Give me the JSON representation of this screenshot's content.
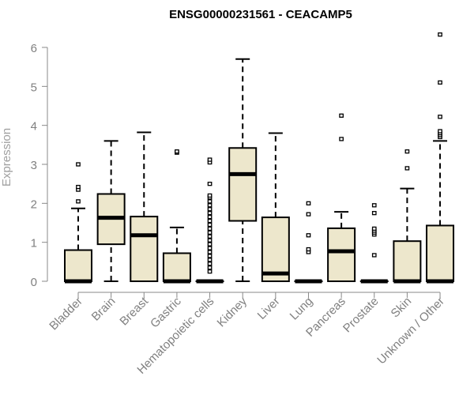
{
  "chart_data": {
    "type": "boxplot",
    "title": "ENSG00000231561 - CEACAMP5",
    "xlabel": "",
    "ylabel": "Expression",
    "ylim": [
      0,
      6
    ],
    "yticks": [
      0,
      1,
      2,
      3,
      4,
      5,
      6
    ],
    "grid": false,
    "colors": {
      "box_fill": "#ede7cc",
      "stroke": "#000000",
      "axis_text": "#808080"
    },
    "categories": [
      "Bladder",
      "Brain",
      "Breast",
      "Gastric",
      "Hematopoietic cells",
      "Kidney",
      "Liver",
      "Lung",
      "Pancreas",
      "Prostate",
      "Skin",
      "Unknown / Other"
    ],
    "boxes": [
      {
        "min": 0,
        "q1": 0,
        "median": 0,
        "q3": 0.8,
        "max": 1.87,
        "outliers": [
          2.05,
          2.35,
          2.42,
          3.0
        ]
      },
      {
        "min": 0,
        "q1": 0.95,
        "median": 1.63,
        "q3": 2.24,
        "max": 3.6,
        "outliers": []
      },
      {
        "min": 0,
        "q1": 0,
        "median": 1.18,
        "q3": 1.66,
        "max": 3.82,
        "outliers": []
      },
      {
        "min": 0,
        "q1": 0,
        "median": 0,
        "q3": 0.72,
        "max": 1.38,
        "outliers": [
          3.3,
          3.33
        ]
      },
      {
        "min": 0,
        "q1": 0,
        "median": 0,
        "q3": 0,
        "max": 0,
        "outliers": [
          0.25,
          0.35,
          0.45,
          0.55,
          0.65,
          0.75,
          0.85,
          0.95,
          1.05,
          1.15,
          1.25,
          1.35,
          1.45,
          1.55,
          1.65,
          1.75,
          1.85,
          1.95,
          2.05,
          2.15,
          2.2,
          2.5,
          3.05,
          3.12
        ]
      },
      {
        "min": 0,
        "q1": 1.55,
        "median": 2.75,
        "q3": 3.42,
        "max": 5.7,
        "outliers": []
      },
      {
        "min": 0,
        "q1": 0,
        "median": 0.2,
        "q3": 1.64,
        "max": 3.8,
        "outliers": []
      },
      {
        "min": 0,
        "q1": 0,
        "median": 0,
        "q3": 0,
        "max": 0,
        "outliers": [
          0.75,
          0.82,
          1.18,
          1.72,
          2.0
        ]
      },
      {
        "min": 0,
        "q1": 0,
        "median": 0.77,
        "q3": 1.36,
        "max": 1.78,
        "outliers": [
          3.65,
          4.25
        ]
      },
      {
        "min": 0,
        "q1": 0,
        "median": 0,
        "q3": 0,
        "max": 0,
        "outliers": [
          0.67,
          1.2,
          1.25,
          1.3,
          1.35,
          1.75,
          1.95
        ]
      },
      {
        "min": 0,
        "q1": 0,
        "median": 0,
        "q3": 1.03,
        "max": 2.38,
        "outliers": [
          2.9,
          3.33
        ]
      },
      {
        "min": 0,
        "q1": 0,
        "median": 0,
        "q3": 1.43,
        "max": 3.6,
        "outliers": [
          3.7,
          3.75,
          3.8,
          3.85,
          4.22,
          5.1,
          6.33
        ]
      }
    ]
  }
}
